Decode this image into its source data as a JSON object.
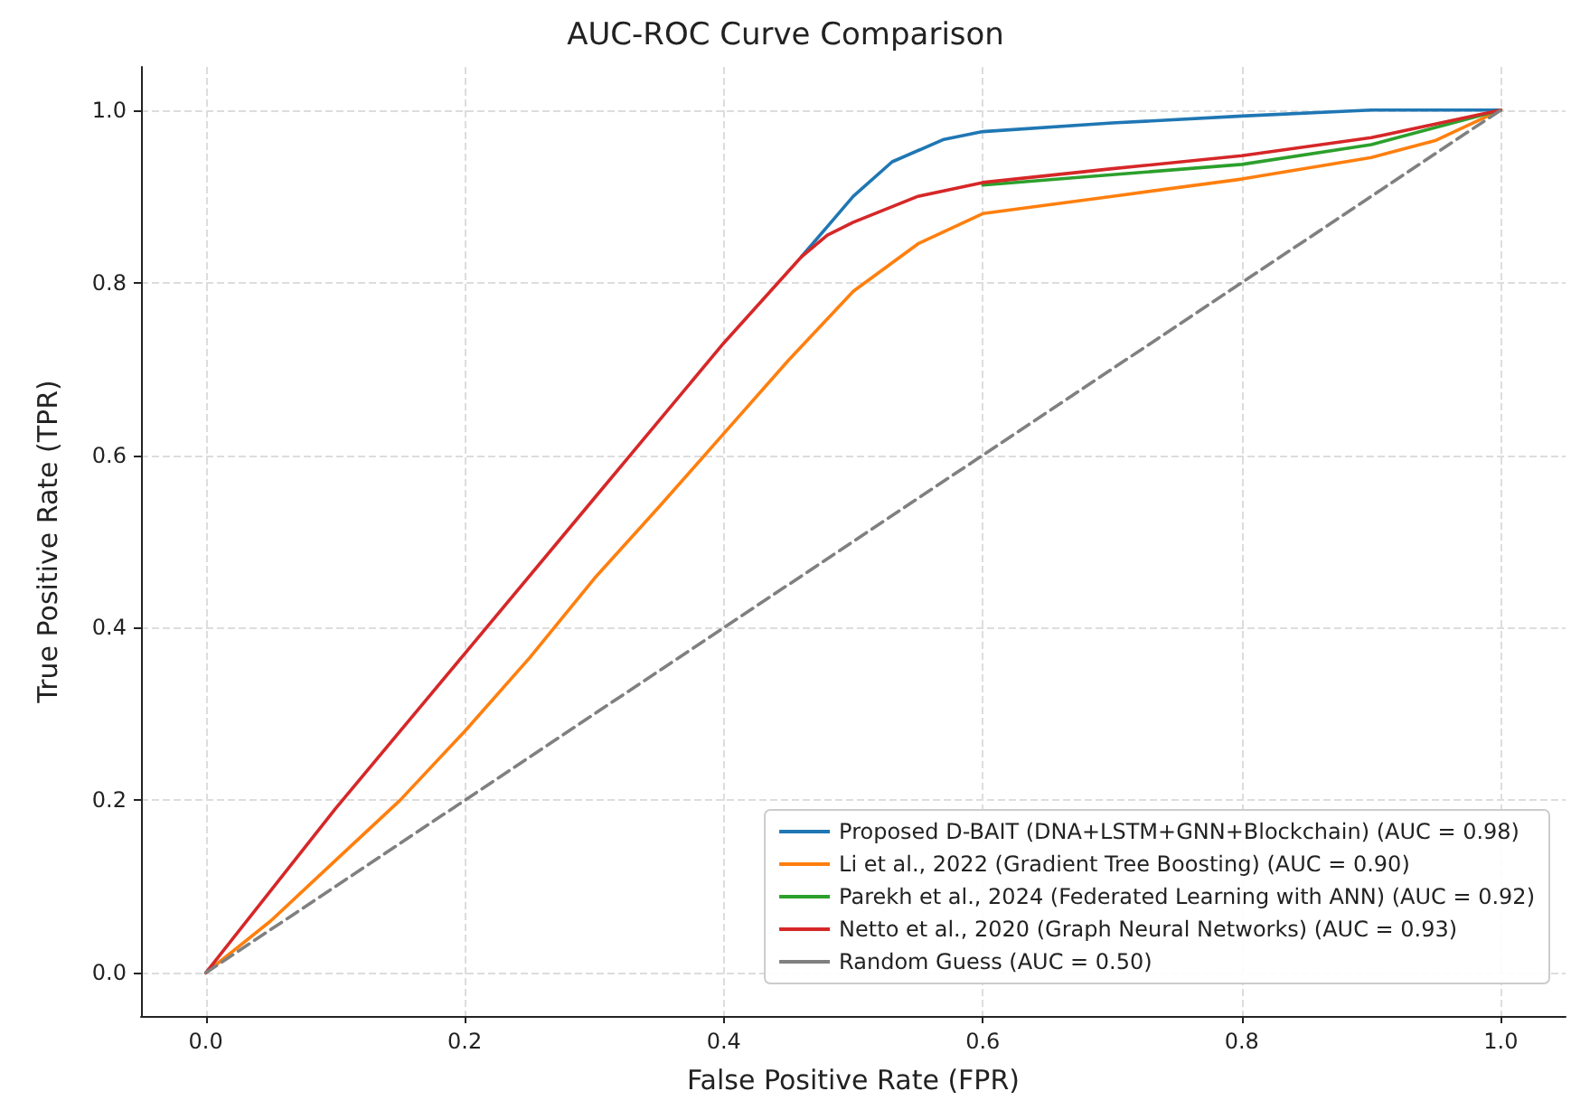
{
  "chart_data": {
    "type": "line",
    "title": "AUC-ROC Curve Comparison",
    "xlabel": "False Positive Rate (FPR)",
    "ylabel": "True Positive Rate (TPR)",
    "xlim": [
      -0.05,
      1.05
    ],
    "ylim": [
      -0.05,
      1.05
    ],
    "xticks": [
      {
        "value": 0,
        "label": "0.0"
      },
      {
        "value": 0.2,
        "label": "0.2"
      },
      {
        "value": 0.4,
        "label": "0.4"
      },
      {
        "value": 0.6,
        "label": "0.6"
      },
      {
        "value": 0.8,
        "label": "0.8"
      },
      {
        "value": 1,
        "label": "1.0"
      }
    ],
    "yticks": [
      {
        "value": 0,
        "label": "0.0"
      },
      {
        "value": 0.2,
        "label": "0.2"
      },
      {
        "value": 0.4,
        "label": "0.4"
      },
      {
        "value": 0.6,
        "label": "0.6"
      },
      {
        "value": 0.8,
        "label": "0.8"
      },
      {
        "value": 1,
        "label": "1.0"
      }
    ],
    "grid": true,
    "legend": "bottom right",
    "marker": "none",
    "line_style": "solid",
    "series": [
      {
        "name": "Proposed D-BAIT (DNA+LSTM+GNN+Blockchain) (AUC = 0.98)",
        "color": "#1f77b4",
        "x": [
          0.46,
          0.48,
          0.5,
          0.53,
          0.57,
          0.6,
          0.7,
          0.8,
          0.9,
          1
        ],
        "values": [
          0.83,
          0.865,
          0.9,
          0.94,
          0.966,
          0.975,
          0.985,
          0.993,
          1,
          1
        ]
      },
      {
        "name": "Li et al., 2022 (Gradient Tree Boosting) (AUC = 0.90)",
        "color": "#ff7f0e",
        "x": [
          0,
          0.05,
          0.1,
          0.15,
          0.2,
          0.25,
          0.3,
          0.35,
          0.4,
          0.45,
          0.5,
          0.55,
          0.6,
          0.7,
          0.8,
          0.9,
          0.95,
          1
        ],
        "values": [
          0,
          0.06,
          0.13,
          0.2,
          0.28,
          0.365,
          0.457,
          0.54,
          0.625,
          0.71,
          0.79,
          0.845,
          0.88,
          0.9,
          0.92,
          0.945,
          0.965,
          1
        ]
      },
      {
        "name": "Parekh et al., 2024 (Federated Learning with ANN) (AUC = 0.92)",
        "color": "#2ca02c",
        "x": [
          0.6,
          0.7,
          0.8,
          0.9,
          1
        ],
        "values": [
          0.913,
          0.925,
          0.937,
          0.96,
          1
        ]
      },
      {
        "name": "Netto et al., 2020 (Graph Neural Networks) (AUC = 0.93)",
        "color": "#d62728",
        "x": [
          0,
          0.1,
          0.2,
          0.3,
          0.4,
          0.46,
          0.48,
          0.5,
          0.55,
          0.6,
          0.7,
          0.8,
          0.9,
          1
        ],
        "values": [
          0,
          0.19,
          0.37,
          0.55,
          0.73,
          0.83,
          0.855,
          0.87,
          0.9,
          0.916,
          0.932,
          0.947,
          0.968,
          1
        ]
      },
      {
        "name": "Random Guess (AUC = 0.50)",
        "color": "#808080",
        "line_style": "dashed",
        "x": [
          0,
          1
        ],
        "values": [
          0,
          1
        ]
      }
    ]
  }
}
